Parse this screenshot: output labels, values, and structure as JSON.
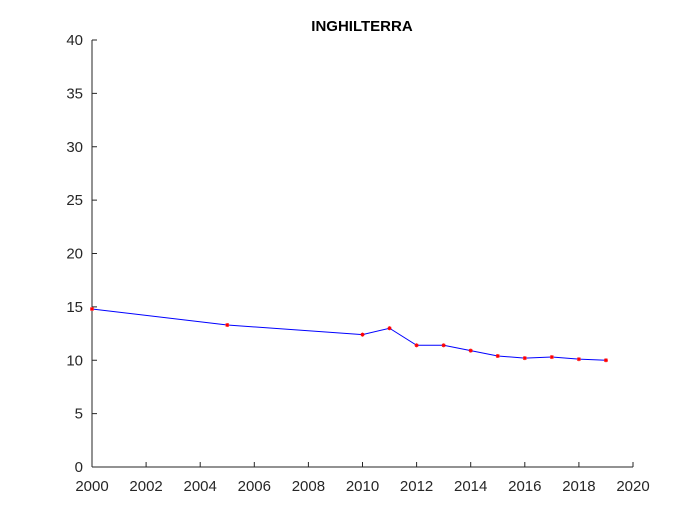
{
  "chart_data": {
    "type": "line",
    "title": "INGHILTERRA",
    "xlabel": "",
    "ylabel": "",
    "xlim": [
      2000,
      2020
    ],
    "ylim": [
      0,
      40
    ],
    "xticks": [
      2000,
      2002,
      2004,
      2006,
      2008,
      2010,
      2012,
      2014,
      2016,
      2018,
      2020
    ],
    "yticks": [
      0,
      5,
      10,
      15,
      20,
      25,
      30,
      35,
      40
    ],
    "xtick_labels": [
      "2000",
      "2002",
      "2004",
      "2006",
      "2008",
      "2010",
      "2012",
      "2014",
      "2016",
      "2018",
      "2020"
    ],
    "ytick_labels": [
      "0",
      "5",
      "10",
      "15",
      "20",
      "25",
      "30",
      "35",
      "40"
    ],
    "grid": false,
    "series": [
      {
        "x": [
          2000,
          2005,
          2010,
          2011,
          2012,
          2013,
          2014,
          2015,
          2016,
          2017,
          2018,
          2019
        ],
        "y": [
          14.8,
          13.3,
          12.4,
          13.0,
          11.4,
          11.4,
          10.9,
          10.4,
          10.2,
          10.3,
          10.1,
          10.0
        ],
        "line_color": "#0000ff",
        "marker_color": "#ff0000",
        "marker": "*"
      }
    ]
  }
}
